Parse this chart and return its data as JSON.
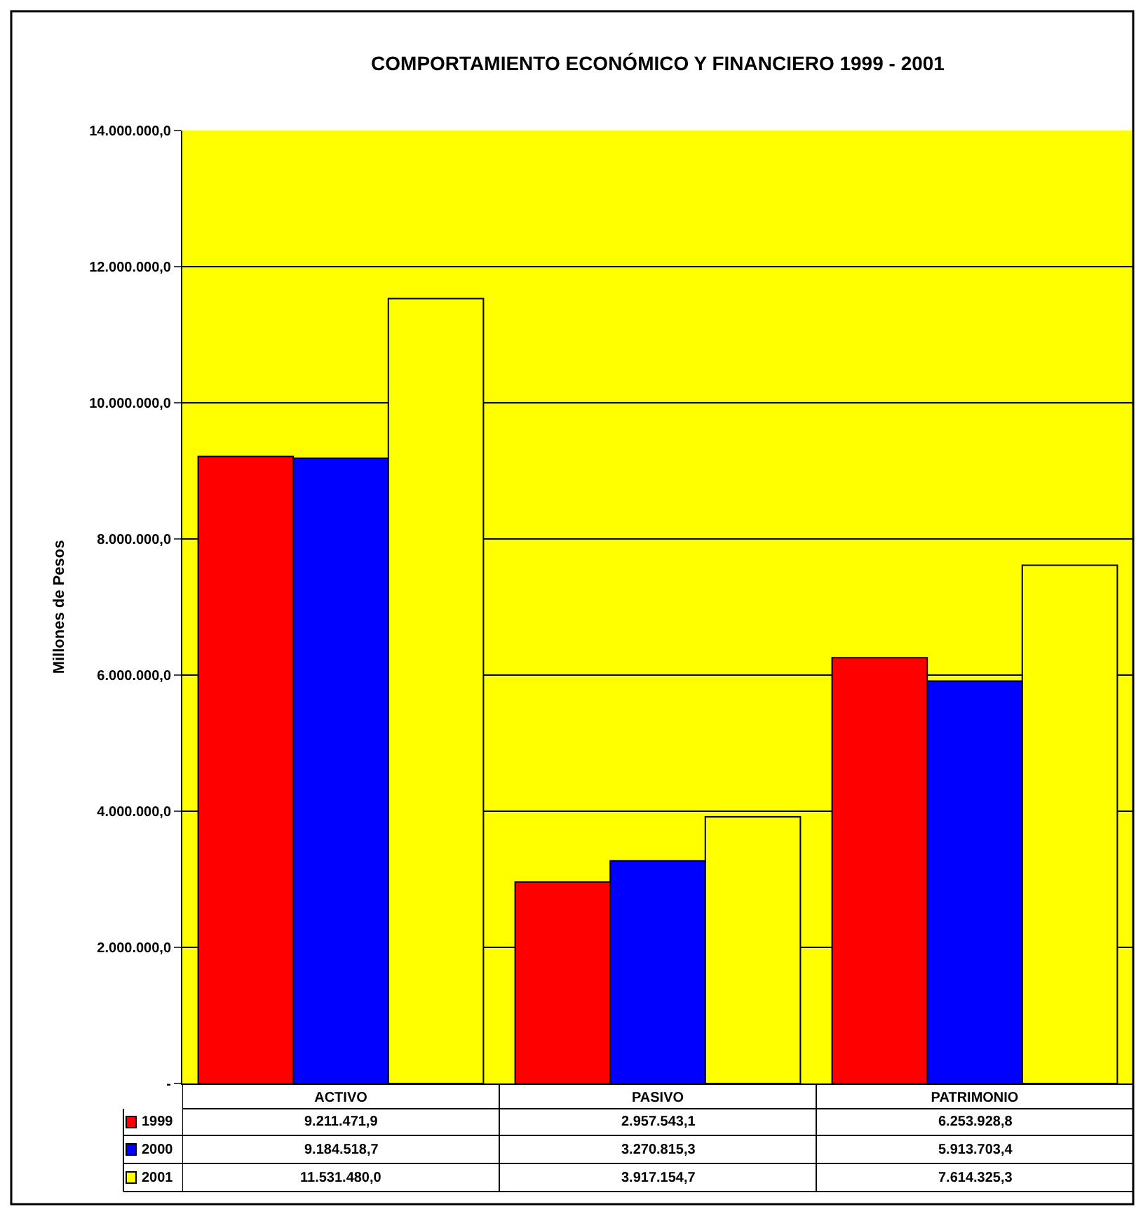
{
  "chart_data": {
    "type": "bar",
    "title": "COMPORTAMIENTO ECONÓMICO Y FINANCIERO 1999 - 2001",
    "ylabel": "Millones de Pesos",
    "categories": [
      "ACTIVO",
      "PASIVO",
      "PATRIMONIO"
    ],
    "series": [
      {
        "name": "1999",
        "color": "#ff0000",
        "values": [
          9211471.9,
          2957543.1,
          6253928.8
        ],
        "value_labels": [
          "9.211.471,9",
          "2.957.543,1",
          "6.253.928,8"
        ]
      },
      {
        "name": "2000",
        "color": "#0000ff",
        "values": [
          9184518.7,
          3270815.3,
          5913703.4
        ],
        "value_labels": [
          "9.184.518,7",
          "3.270.815,3",
          "5.913.703,4"
        ]
      },
      {
        "name": "2001",
        "color": "#ffff00",
        "values": [
          11531480.0,
          3917154.7,
          7614325.3
        ],
        "value_labels": [
          "11.531.480,0",
          "3.917.154,7",
          "7.614.325,3"
        ]
      }
    ],
    "ylim": [
      0,
      14000000
    ],
    "yticks": [
      {
        "value": 0,
        "label": "-"
      },
      {
        "value": 2000000,
        "label": "2.000.000,0"
      },
      {
        "value": 4000000,
        "label": "4.000.000,0"
      },
      {
        "value": 6000000,
        "label": "6.000.000,0"
      },
      {
        "value": 8000000,
        "label": "8.000.000,0"
      },
      {
        "value": 10000000,
        "label": "10.000.000,0"
      },
      {
        "value": 12000000,
        "label": "12.000.000,0"
      },
      {
        "value": 14000000,
        "label": "14.000.000,0"
      }
    ],
    "grid": "y",
    "legend": "bottom"
  }
}
